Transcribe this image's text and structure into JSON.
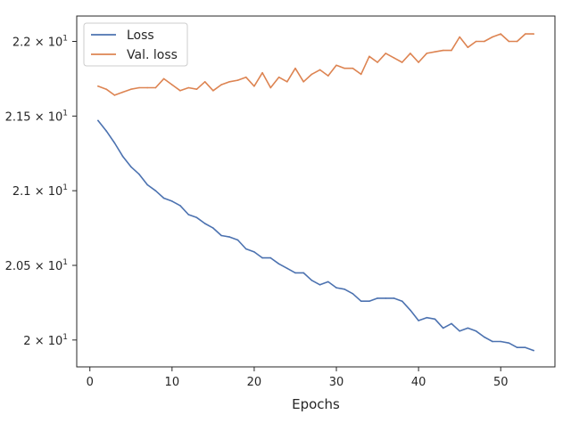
{
  "chart_data": {
    "type": "line",
    "title": "",
    "xlabel": "Epochs",
    "ylabel": "",
    "xlim": [
      -1.6,
      56.6
    ],
    "ylim": [
      19.82,
      22.17
    ],
    "grid": false,
    "legend_position": "top-left",
    "x_ticks": [
      {
        "value": 0,
        "label": "0"
      },
      {
        "value": 10,
        "label": "10"
      },
      {
        "value": 20,
        "label": "20"
      },
      {
        "value": 30,
        "label": "30"
      },
      {
        "value": 40,
        "label": "40"
      },
      {
        "value": 50,
        "label": "50"
      }
    ],
    "y_ticks": [
      {
        "value": 20.0,
        "mantissa": "2",
        "exponent": "1"
      },
      {
        "value": 20.5,
        "mantissa": "2.05",
        "exponent": "1"
      },
      {
        "value": 21.0,
        "mantissa": "2.1",
        "exponent": "1"
      },
      {
        "value": 21.5,
        "mantissa": "2.15",
        "exponent": "1"
      },
      {
        "value": 22.0,
        "mantissa": "2.2",
        "exponent": "1"
      }
    ],
    "x": [
      1,
      2,
      3,
      4,
      5,
      6,
      7,
      8,
      9,
      10,
      11,
      12,
      13,
      14,
      15,
      16,
      17,
      18,
      19,
      20,
      21,
      22,
      23,
      24,
      25,
      26,
      27,
      28,
      29,
      30,
      31,
      32,
      33,
      34,
      35,
      36,
      37,
      38,
      39,
      40,
      41,
      42,
      43,
      44,
      45,
      46,
      47,
      48,
      49,
      50,
      51,
      52,
      53,
      54
    ],
    "series": [
      {
        "name": "Loss",
        "color": "#4c72b0",
        "values": [
          21.47,
          21.4,
          21.32,
          21.23,
          21.16,
          21.11,
          21.04,
          21.0,
          20.95,
          20.93,
          20.9,
          20.84,
          20.82,
          20.78,
          20.75,
          20.7,
          20.69,
          20.67,
          20.61,
          20.59,
          20.55,
          20.55,
          20.51,
          20.48,
          20.45,
          20.45,
          20.4,
          20.37,
          20.39,
          20.35,
          20.34,
          20.31,
          20.26,
          20.26,
          20.28,
          20.28,
          20.28,
          20.26,
          20.2,
          20.13,
          20.15,
          20.14,
          20.08,
          20.11,
          20.06,
          20.08,
          20.06,
          20.02,
          19.99,
          19.99,
          19.98,
          19.95,
          19.95,
          19.93
        ]
      },
      {
        "name": "Val. loss",
        "color": "#dd8452",
        "values": [
          21.7,
          21.68,
          21.64,
          21.66,
          21.68,
          21.69,
          21.69,
          21.69,
          21.75,
          21.71,
          21.67,
          21.69,
          21.68,
          21.73,
          21.67,
          21.71,
          21.73,
          21.74,
          21.76,
          21.7,
          21.79,
          21.69,
          21.76,
          21.73,
          21.82,
          21.73,
          21.78,
          21.81,
          21.77,
          21.84,
          21.82,
          21.82,
          21.78,
          21.9,
          21.86,
          21.92,
          21.89,
          21.86,
          21.92,
          21.86,
          21.92,
          21.93,
          21.94,
          21.94,
          22.03,
          21.96,
          22.0,
          22.0,
          22.03,
          22.05,
          22.0,
          22.0,
          22.05,
          22.05
        ]
      }
    ]
  }
}
